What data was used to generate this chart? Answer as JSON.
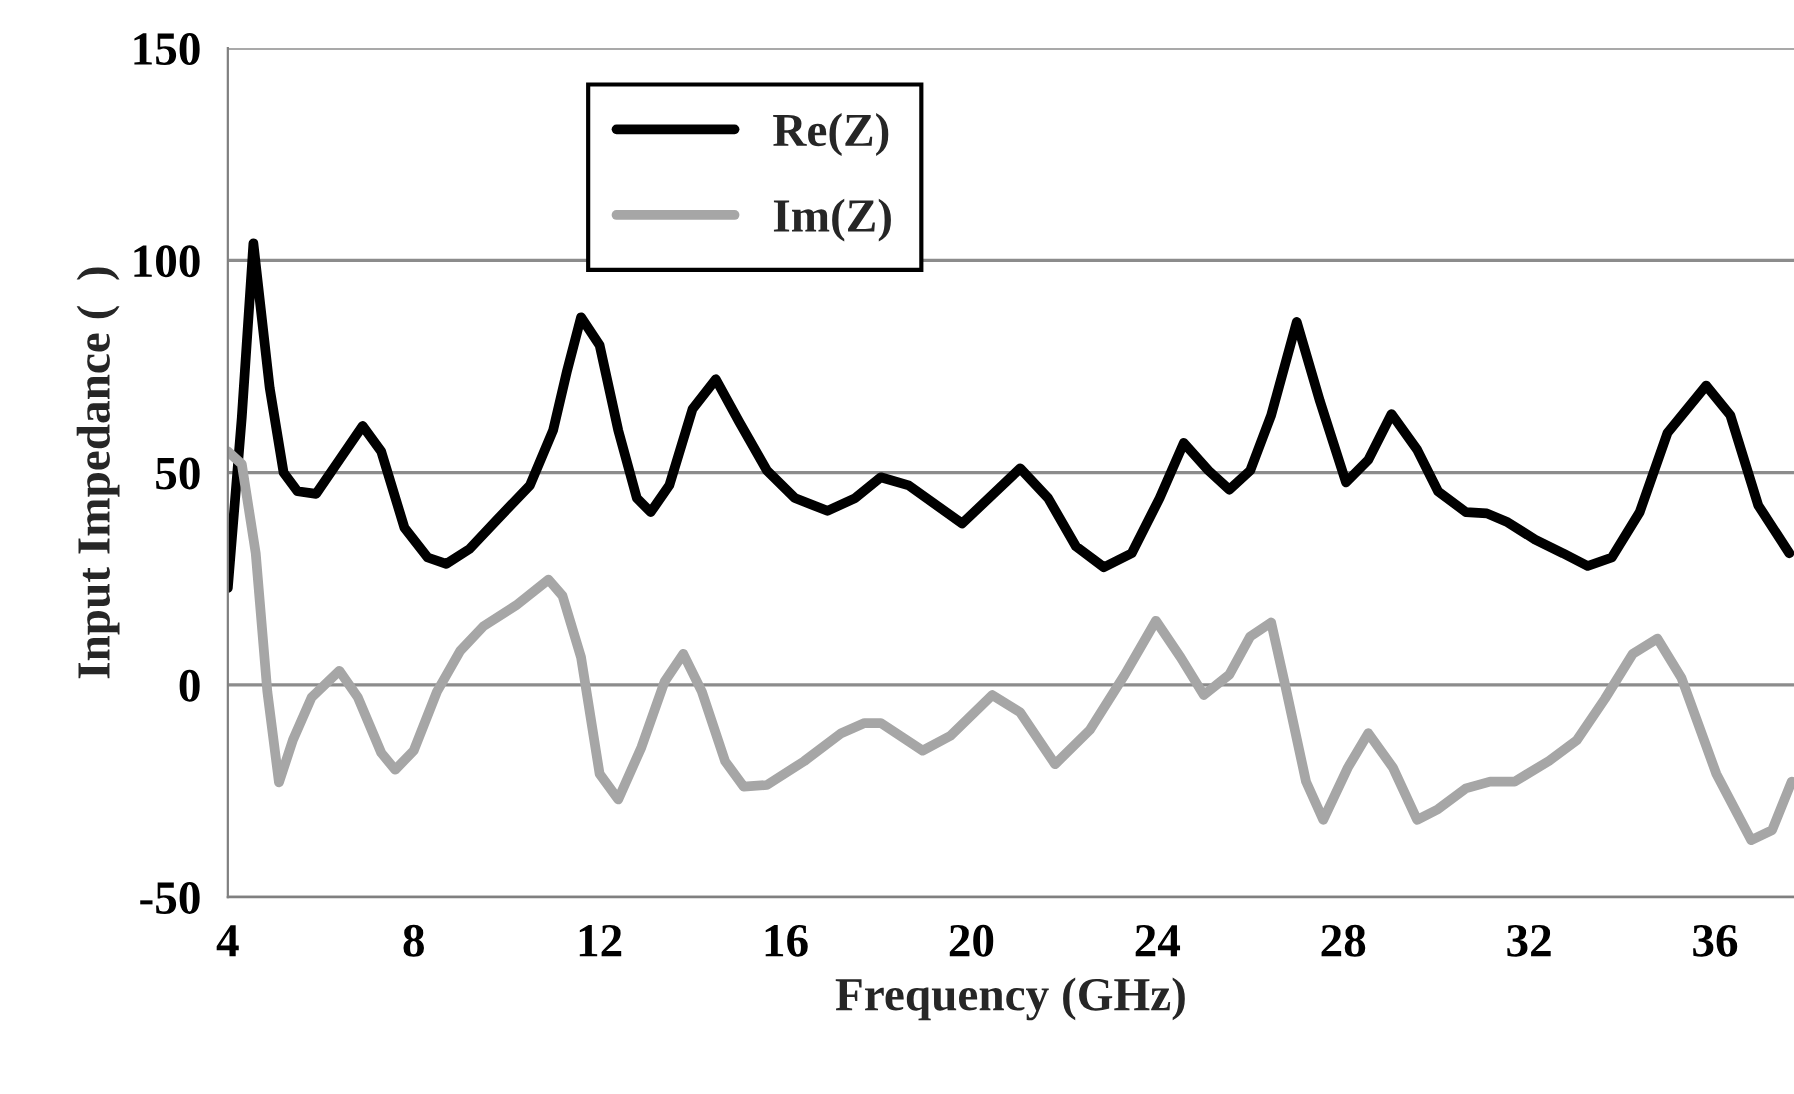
{
  "chart_data": {
    "type": "line",
    "xlabel": "Frequency (GHz)",
    "ylabel": "Input Impedance (  )",
    "xlim": [
      4,
      37.7
    ],
    "xticks": [
      4,
      8,
      12,
      16,
      20,
      24,
      28,
      32,
      36
    ],
    "ylim": [
      -50,
      150
    ],
    "yticks": [
      -50,
      0,
      50,
      100,
      150
    ],
    "grid": "y",
    "legend": "top",
    "line_style": "solid",
    "marker": "none",
    "series": [
      {
        "name": "Re(Z)",
        "color": "#000000",
        "x": [
          4.0,
          4.3,
          4.55,
          4.9,
          5.2,
          5.5,
          5.9,
          6.4,
          6.9,
          7.3,
          7.8,
          8.3,
          8.7,
          9.2,
          9.8,
          10.5,
          11.0,
          11.3,
          11.6,
          12.0,
          12.4,
          12.8,
          13.1,
          13.5,
          14.0,
          14.5,
          15.0,
          15.6,
          16.2,
          16.9,
          17.5,
          18.05,
          18.65,
          19.8,
          21.05,
          21.65,
          22.25,
          22.85,
          23.45,
          24.05,
          24.57,
          25.1,
          25.55,
          26.0,
          26.45,
          27.0,
          27.5,
          28.06,
          28.54,
          29.04,
          29.59,
          30.04,
          30.64,
          31.09,
          31.54,
          32.13,
          32.73,
          33.26,
          33.78,
          34.38,
          34.98,
          35.81,
          36.33,
          36.93,
          37.6
        ],
        "values": [
          22.8,
          63,
          104,
          70,
          50,
          45.6,
          45,
          53,
          61,
          55,
          37,
          30,
          28.5,
          32,
          39,
          47,
          60,
          74,
          86.6,
          80,
          60,
          44,
          40.7,
          47,
          65,
          72,
          62,
          50.5,
          44,
          41,
          44,
          48.9,
          47,
          38,
          51,
          44,
          32.6,
          27.7,
          31,
          44,
          57,
          50.5,
          46,
          50.5,
          63.5,
          85.5,
          66.8,
          47.7,
          53,
          63.8,
          55.4,
          45.6,
          40.7,
          40.4,
          38.3,
          34.2,
          31,
          28,
          30,
          40.7,
          59.4,
          70.5,
          63.5,
          42.3,
          31
        ]
      },
      {
        "name": "Im(Z)",
        "color": "#a6a6a6",
        "x": [
          4.0,
          4.3,
          4.6,
          4.85,
          5.1,
          5.4,
          5.8,
          6.4,
          6.8,
          7.3,
          7.6,
          8.0,
          8.5,
          9.0,
          9.5,
          10.2,
          10.9,
          11.2,
          11.6,
          12.0,
          12.4,
          12.9,
          13.4,
          13.8,
          14.2,
          14.7,
          15.1,
          15.6,
          16.4,
          17.2,
          17.7,
          18.05,
          18.95,
          19.55,
          20.45,
          21.05,
          21.8,
          22.55,
          23.3,
          23.97,
          24.5,
          25.0,
          25.55,
          26.0,
          26.45,
          26.75,
          27.2,
          27.57,
          28.1,
          28.54,
          29.07,
          29.59,
          30.04,
          30.64,
          31.16,
          31.69,
          32.43,
          33.03,
          33.63,
          34.23,
          34.76,
          35.28,
          36.03,
          36.78,
          37.23,
          37.65
        ],
        "values": [
          55,
          52,
          31,
          -1.6,
          -23,
          -13,
          -3,
          3.3,
          -3,
          -16,
          -20,
          -15.5,
          -1.6,
          8,
          13.8,
          18.7,
          24.8,
          21,
          6.5,
          -21,
          -27,
          -14.7,
          0.8,
          7.3,
          -1.6,
          -18,
          -24,
          -23.6,
          -18,
          -11.4,
          -9,
          -9,
          -15.5,
          -12,
          -2.4,
          -6.5,
          -18.7,
          -10.6,
          2.4,
          15.1,
          6.5,
          -2.4,
          2.4,
          11.4,
          14.7,
          0,
          -22.8,
          -31.8,
          -19.5,
          -11.4,
          -19.5,
          -31.8,
          -29.3,
          -24.4,
          -22.8,
          -22.8,
          -17.9,
          -13,
          -3.3,
          7.3,
          10.9,
          1.6,
          -21,
          -36.6,
          -34.2,
          -22.8
        ]
      }
    ]
  }
}
